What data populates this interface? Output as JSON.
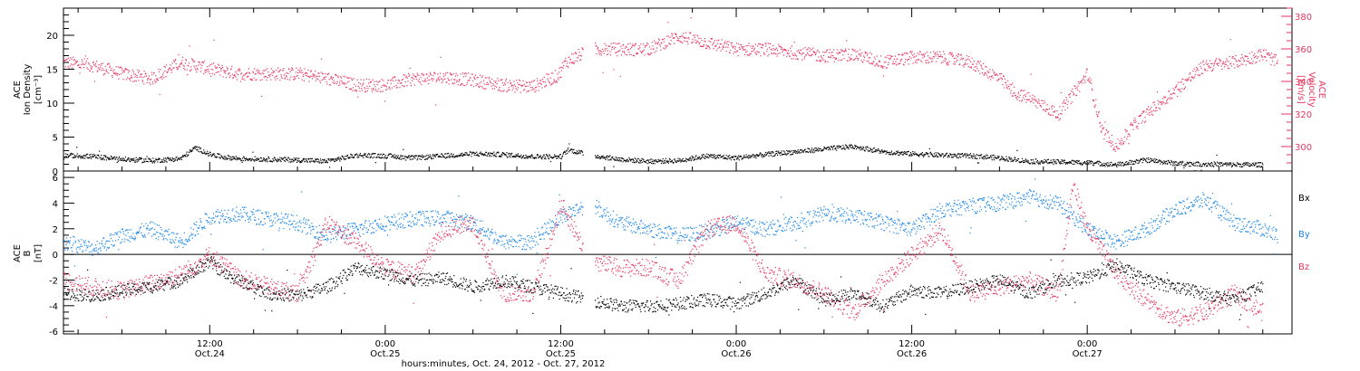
{
  "colors": {
    "black": "#000000",
    "red": "#e8365f",
    "blue": "#1a86e8"
  },
  "xlabel": "hours:minutes, Oct. 24, 2012 - Oct. 27, 2012",
  "x_ticks": [
    {
      "time": "12:00",
      "date": "Oct.24"
    },
    {
      "time": "0:00",
      "date": "Oct.25"
    },
    {
      "time": "12:00",
      "date": "Oct.25"
    },
    {
      "time": "0:00",
      "date": "Oct.26"
    },
    {
      "time": "12:00",
      "date": "Oct.26"
    },
    {
      "time": "0:00",
      "date": "Oct.27"
    }
  ],
  "panel1": {
    "left_label": [
      "ACE",
      "Ion Density",
      "[cm⁻³]"
    ],
    "right_label": [
      "ACE",
      "Velocity",
      "[km/s]"
    ]
  },
  "panel2": {
    "left_label": [
      "ACE",
      "B",
      "[nT]"
    ],
    "legend": [
      "Bx",
      "By",
      "Bz"
    ]
  },
  "chart_data": [
    {
      "type": "scatter",
      "title": "",
      "x_unit": "hours from 2012-10-24 00:00 UT",
      "xlim": [
        2,
        86
      ],
      "series": [
        {
          "name": "Ion Density",
          "axis": "left",
          "ylim": [
            0,
            24
          ],
          "y_ticks": [
            0,
            5,
            10,
            15,
            20
          ],
          "x": [
            2,
            4,
            6,
            8,
            10,
            11,
            12,
            13,
            14,
            16,
            18,
            20,
            22,
            24,
            26,
            28,
            30,
            32,
            34,
            36,
            36.5,
            38,
            40,
            42,
            44,
            46,
            48,
            50,
            52,
            54,
            56,
            58,
            60,
            62,
            64,
            66,
            68,
            70,
            72,
            74,
            76,
            78,
            80,
            82,
            84
          ],
          "values": [
            2.4,
            2.2,
            1.8,
            1.6,
            1.9,
            3.5,
            2.5,
            2.1,
            1.9,
            1.8,
            1.7,
            1.5,
            2.4,
            2.3,
            2.0,
            2.3,
            2.6,
            2.5,
            2.2,
            2.2,
            3.2,
            2.4,
            1.8,
            1.5,
            1.6,
            2.3,
            2.0,
            2.5,
            2.9,
            3.3,
            3.7,
            2.9,
            2.6,
            2.4,
            2.3,
            2.0,
            1.5,
            1.4,
            1.3,
            1.0,
            1.7,
            1.2,
            1.1,
            1.0,
            1.0
          ]
        },
        {
          "name": "Velocity",
          "axis": "right",
          "ylim": [
            285,
            385
          ],
          "y_ticks": [
            300,
            320,
            340,
            360,
            380
          ],
          "x": [
            2,
            4,
            6,
            8,
            10,
            12,
            14,
            16,
            18,
            20,
            22,
            24,
            26,
            28,
            30,
            32,
            34,
            35.8,
            36.3,
            38,
            40,
            42,
            44,
            46,
            48,
            50,
            52,
            54,
            56,
            58,
            60,
            62,
            64,
            66,
            67,
            68,
            70,
            72,
            73,
            74,
            75,
            76,
            78,
            80,
            82,
            84,
            85
          ],
          "values": [
            352,
            350,
            345,
            342,
            352,
            348,
            345,
            345,
            345,
            342,
            338,
            338,
            342,
            343,
            341,
            338,
            337,
            344,
            352,
            360,
            360,
            360,
            368,
            364,
            360,
            360,
            358,
            356,
            357,
            352,
            355,
            355,
            352,
            342,
            333,
            330,
            320,
            345,
            310,
            300,
            312,
            320,
            335,
            350,
            352,
            357,
            352
          ]
        }
      ]
    },
    {
      "type": "scatter",
      "title": "",
      "x_unit": "hours from 2012-10-24 00:00 UT",
      "xlim": [
        2,
        86
      ],
      "ylim": [
        -6.2,
        6.5
      ],
      "y_ticks": [
        -6,
        -4,
        -2,
        0,
        2,
        4,
        6
      ],
      "series": [
        {
          "name": "Bx",
          "x": [
            2,
            4,
            6,
            8,
            10,
            12,
            13,
            14,
            16,
            18,
            20,
            22,
            24,
            26,
            28,
            30,
            32,
            34,
            36,
            38,
            40,
            42,
            44,
            46,
            48,
            50,
            52,
            54,
            56,
            58,
            60,
            62,
            64,
            66,
            68,
            70,
            72,
            74,
            76,
            78,
            80,
            82,
            84
          ],
          "values": [
            -3.0,
            -3.2,
            -2.8,
            -2.5,
            -2.0,
            -0.5,
            -1.5,
            -2.0,
            -3.0,
            -3.2,
            -2.5,
            -1.0,
            -1.5,
            -2.0,
            -1.8,
            -2.5,
            -2.0,
            -2.5,
            -3.0,
            -3.5,
            -4.0,
            -4.0,
            -3.8,
            -3.5,
            -3.8,
            -3.0,
            -2.0,
            -3.5,
            -3.0,
            -4.0,
            -2.8,
            -3.0,
            -2.5,
            -2.0,
            -3.0,
            -2.0,
            -1.8,
            -0.8,
            -2.0,
            -2.5,
            -3.0,
            -3.5,
            -2.5
          ]
        },
        {
          "name": "By",
          "x": [
            2,
            4,
            6,
            8,
            10,
            12,
            14,
            16,
            18,
            20,
            22,
            24,
            26,
            28,
            30,
            32,
            34,
            36,
            38,
            40,
            42,
            44,
            46,
            48,
            50,
            52,
            54,
            56,
            58,
            60,
            62,
            64,
            66,
            68,
            70,
            72,
            74,
            76,
            78,
            80,
            82,
            84,
            85
          ],
          "values": [
            1.0,
            0.5,
            1.5,
            2.0,
            1.0,
            3.0,
            3.2,
            2.8,
            2.5,
            1.5,
            2.0,
            2.5,
            2.8,
            2.9,
            2.5,
            1.0,
            1.0,
            3.0,
            4.0,
            2.5,
            2.0,
            1.5,
            1.8,
            2.5,
            2.0,
            2.5,
            3.2,
            3.0,
            2.5,
            2.0,
            3.5,
            3.8,
            4.0,
            4.5,
            4.0,
            2.0,
            1.0,
            2.0,
            3.5,
            4.3,
            2.5,
            2.0,
            1.5
          ]
        },
        {
          "name": "Bz",
          "x": [
            2,
            4,
            6,
            8,
            10,
            12,
            14,
            16,
            18,
            20,
            22,
            24,
            26,
            28,
            30,
            32,
            34,
            35,
            36,
            38,
            40,
            42,
            44,
            46,
            48,
            50,
            52,
            54,
            56,
            58,
            60,
            62,
            64,
            66,
            68,
            70,
            71,
            72,
            74,
            76,
            78,
            80,
            82,
            84
          ],
          "values": [
            -2.0,
            -2.5,
            -2.8,
            -2.2,
            -1.5,
            0.0,
            -1.8,
            -2.5,
            -3.0,
            2.5,
            1.0,
            -1.0,
            -1.5,
            2.0,
            2.5,
            -3.0,
            -3.0,
            0.0,
            4.0,
            -0.5,
            -1.0,
            -1.0,
            -2.0,
            2.0,
            2.5,
            -1.5,
            -2.0,
            -3.0,
            -4.5,
            -2.0,
            0.0,
            2.0,
            -3.0,
            -2.5,
            -2.0,
            -3.0,
            5.5,
            2.0,
            -1.5,
            -3.5,
            -5.0,
            -4.5,
            -3.0,
            -4.5
          ]
        }
      ]
    }
  ]
}
